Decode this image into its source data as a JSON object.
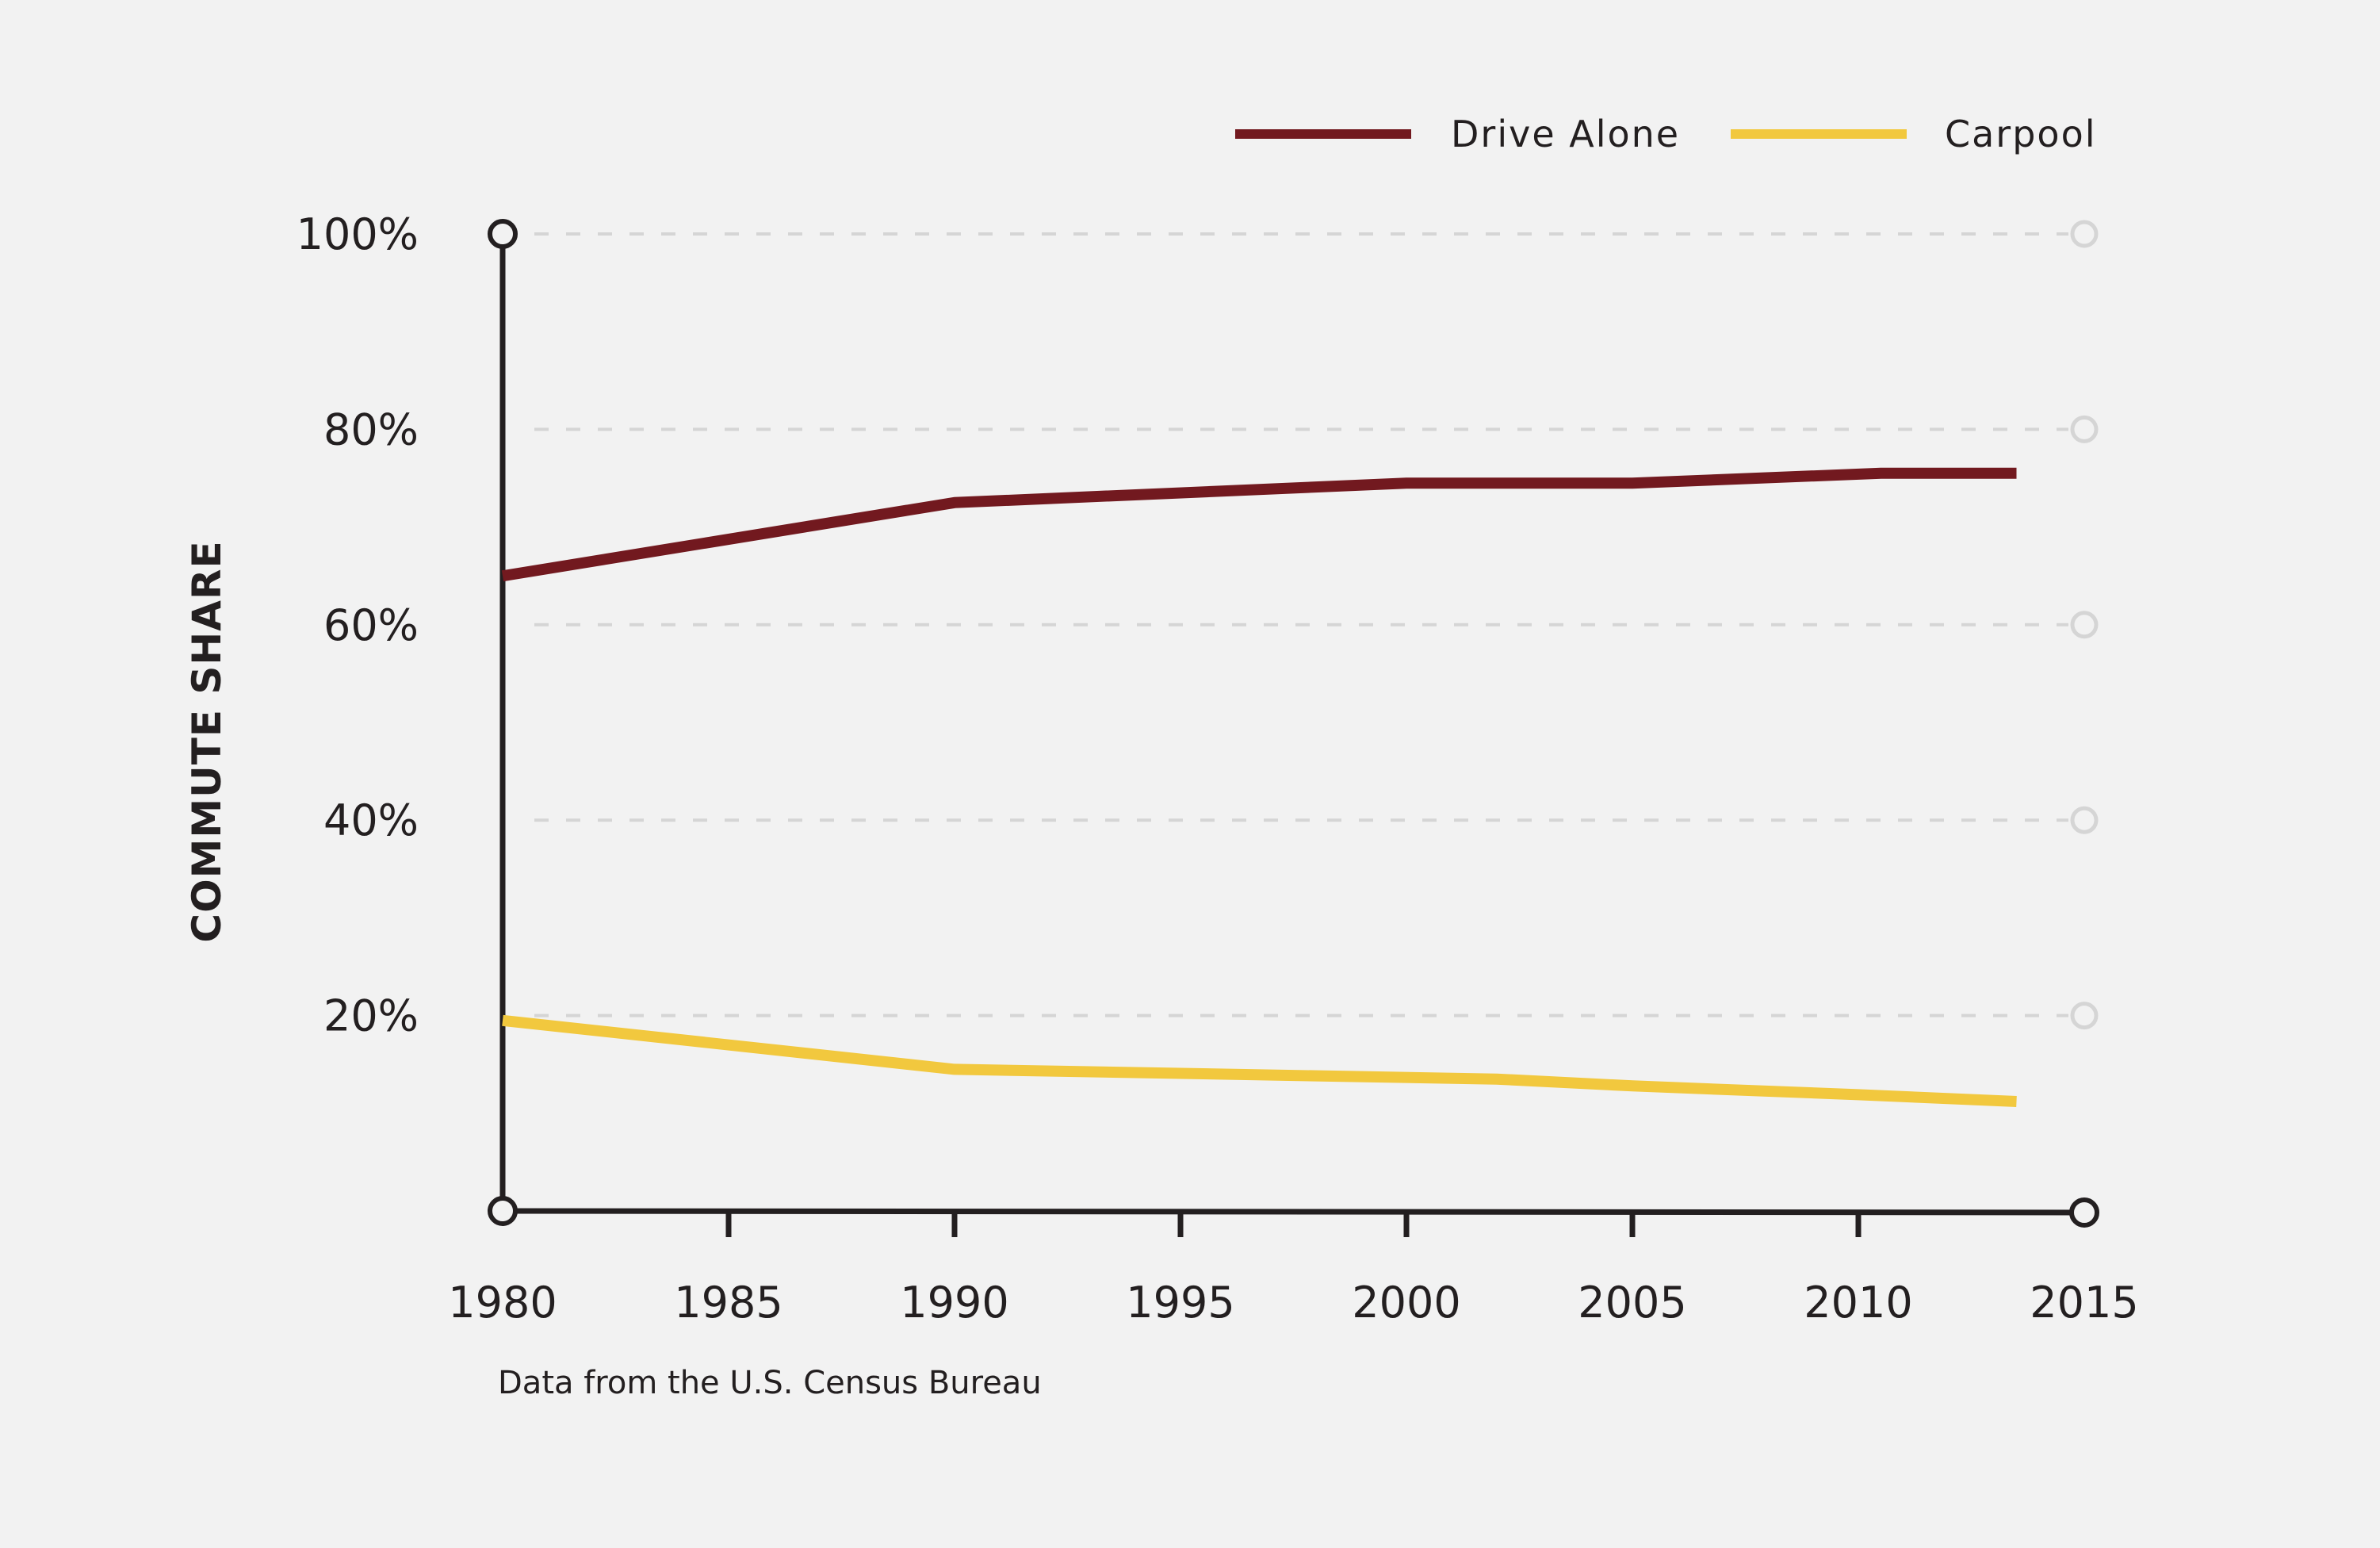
{
  "chart_data": {
    "type": "line",
    "title": "",
    "xlabel": "",
    "ylabel": "COMMUTE SHARE",
    "source": "Data from the U.S. Census Bureau",
    "xlim": [
      1980,
      2015
    ],
    "ylim": [
      0,
      100
    ],
    "x_ticks": [
      "1980",
      "1985",
      "1990",
      "1995",
      "2000",
      "2005",
      "2010",
      "2015"
    ],
    "y_ticks": [
      {
        "value": 100,
        "label": "100%"
      },
      {
        "value": 80,
        "label": "80%"
      },
      {
        "value": 60,
        "label": "60%"
      },
      {
        "value": 40,
        "label": "40%"
      },
      {
        "value": 20,
        "label": "20%"
      }
    ],
    "grid": true,
    "legend_position": "top-right",
    "series": [
      {
        "name": "Drive Alone",
        "color": "#72191f",
        "x": [
          1980,
          1990,
          2000,
          2005,
          2010.5,
          2013.5
        ],
        "values": [
          65.0,
          72.5,
          74.5,
          74.5,
          75.5,
          75.5
        ]
      },
      {
        "name": "Carpool",
        "color": "#f2c83e",
        "x": [
          1980,
          1990,
          2002,
          2005,
          2010,
          2013.5
        ],
        "values": [
          19.5,
          14.5,
          13.5,
          12.8,
          11.9,
          11.2
        ]
      }
    ],
    "colors": {
      "background": "#f2f2f2",
      "axis": "#231f20",
      "grid": "#d5d5d5"
    }
  }
}
